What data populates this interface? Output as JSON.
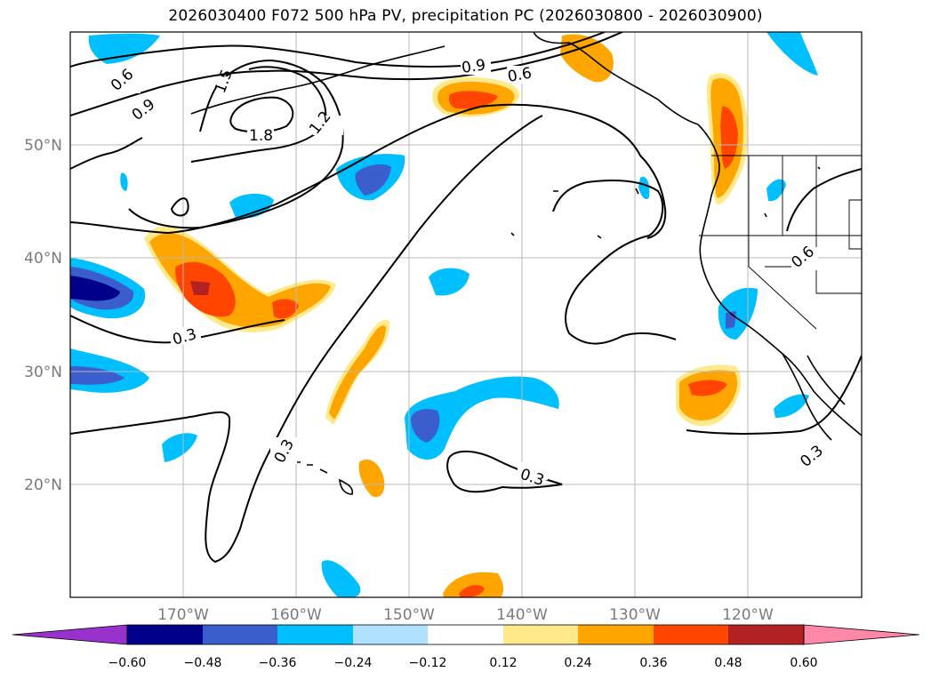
{
  "title": "2026030400 F072 500 hPa PV, precipitation PC (2026030800 - 2026030900)",
  "latitude_labels": [
    "50°N",
    "40°N",
    "30°N",
    "20°N"
  ],
  "longitude_labels": [
    "170°W",
    "160°W",
    "150°W",
    "140°W",
    "130°W",
    "120°W"
  ],
  "contour_labels": [
    "0.6",
    "0.9",
    "1.5",
    "1.8",
    "1.2",
    "0.9",
    "0.6",
    "0.3",
    "0.3",
    "0.3",
    "0.6",
    "0.3"
  ],
  "colorbar": {
    "tick_labels": [
      "−0.60",
      "−0.48",
      "−0.36",
      "−0.24",
      "−0.12",
      "0.12",
      "0.24",
      "0.36",
      "0.48",
      "0.60"
    ],
    "colors": [
      "#9932cc",
      "#00008b",
      "#3a5fcd",
      "#00bfff",
      "#b0e2ff",
      "#ffffff",
      "#ffe98a",
      "#ffa500",
      "#ff4500",
      "#b22222",
      "#ff87a8"
    ]
  }
}
